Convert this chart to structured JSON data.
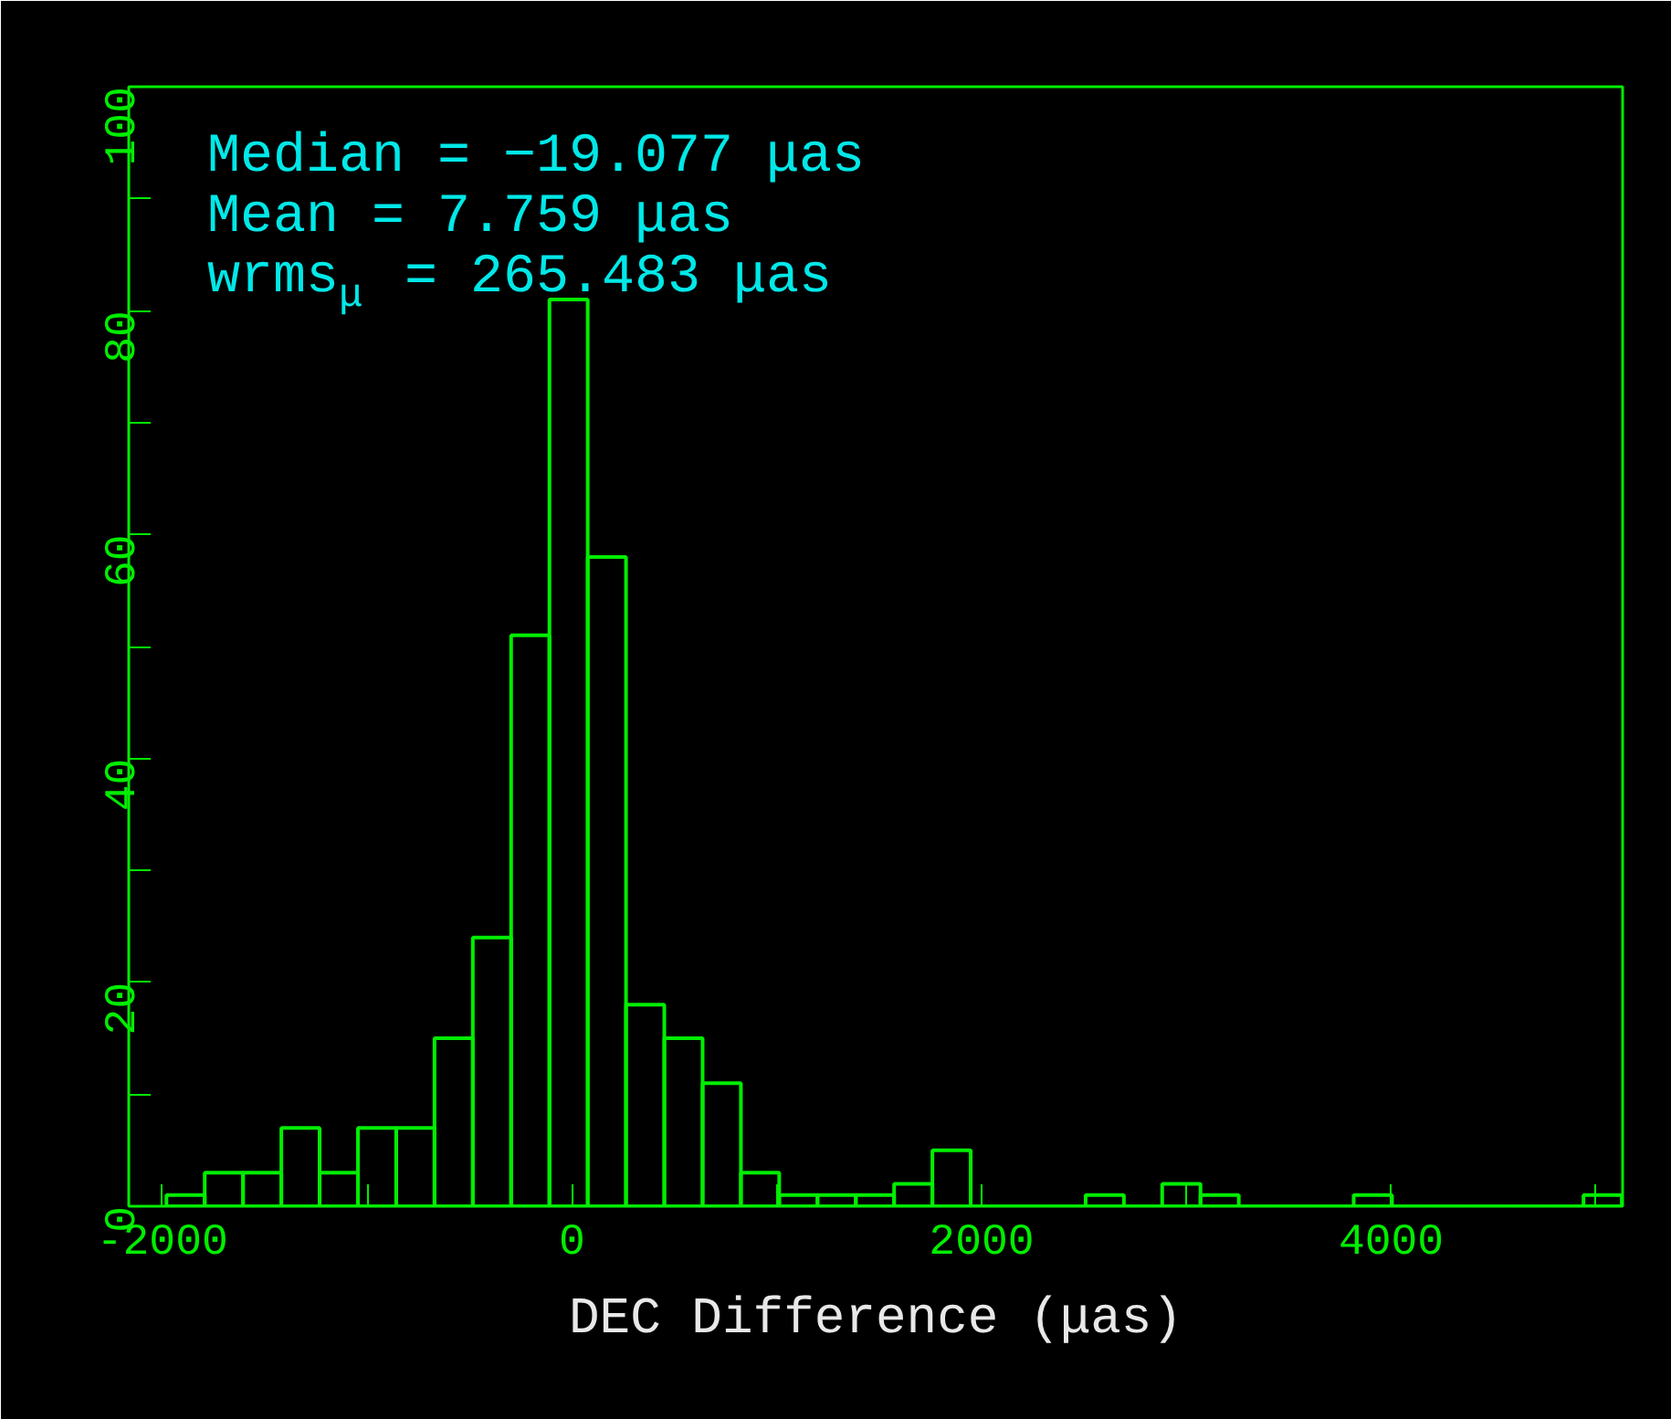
{
  "chart_data": {
    "type": "histogram",
    "xlabel": "DEC Difference (μas)",
    "bins": [
      -1980,
      -1793,
      -1606,
      -1419,
      -1232,
      -1045,
      -858,
      -671,
      -484,
      -297,
      -110,
      77,
      264,
      451,
      638,
      825,
      1012,
      1199,
      1386,
      1573,
      1760,
      1947,
      2134,
      2321,
      2508,
      2695,
      2882,
      3069,
      3256,
      3443,
      3630,
      3817,
      4004,
      4191,
      4378,
      4565,
      4752,
      4939,
      5126
    ],
    "values": [
      1,
      3,
      3,
      7,
      3,
      7,
      7,
      15,
      24,
      51,
      81,
      58,
      18,
      15,
      11,
      3,
      1,
      1,
      1,
      2,
      5,
      0,
      0,
      0,
      1,
      0,
      2,
      1,
      0,
      0,
      0,
      1,
      0,
      0,
      0,
      0,
      0,
      1
    ],
    "color": "#00ee00",
    "xlim": [
      -2164,
      5130
    ],
    "ylim": [
      0,
      100
    ],
    "xticks": [
      -2000,
      {
        "value": -1000,
        "label": null
      },
      0,
      {
        "value": 1000,
        "label": null
      },
      2000,
      {
        "value": 3000,
        "label": null
      },
      4000,
      {
        "value": 5000,
        "label": null
      }
    ],
    "yticks": [
      0,
      {
        "value": 10,
        "label": null
      },
      20,
      {
        "value": 30,
        "label": null
      },
      40,
      {
        "value": 50,
        "label": null
      },
      60,
      {
        "value": 70,
        "label": null
      },
      80,
      {
        "value": 90,
        "label": null
      },
      100
    ],
    "grid": false,
    "annotations": [
      "Median = −19.077 μas",
      "Mean = 7.759 μas",
      "wrms$_{μ}$ = 265.483 μas"
    ]
  }
}
